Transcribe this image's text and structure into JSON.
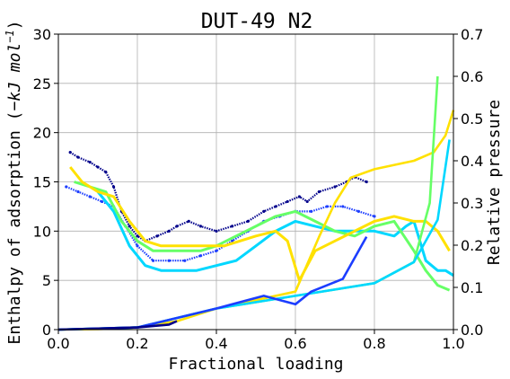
{
  "chart_data": {
    "type": "line",
    "title": "DUT-49 N2",
    "xlabel": "Fractional loading",
    "ylabel_left": "Enthalpy of adsorption (−kJ mol⁻¹)",
    "ylabel_left_parts": {
      "pre": "Enthalpy of adsorption (",
      "post": ")",
      "unit_main": "−kJ mol",
      "unit_sup": "−1"
    },
    "ylabel_right": "Relative pressure",
    "xlim": [
      0.0,
      1.0
    ],
    "ylim_left": [
      0,
      30
    ],
    "ylim_right": [
      0.0,
      0.7
    ],
    "x_ticks": [
      "0.0",
      "0.2",
      "0.4",
      "0.6",
      "0.8",
      "1.0"
    ],
    "y_left_ticks": [
      "0",
      "5",
      "10",
      "15",
      "20",
      "25",
      "30"
    ],
    "y_right_ticks": [
      "0.0",
      "0.1",
      "0.2",
      "0.3",
      "0.4",
      "0.5",
      "0.6",
      "0.7"
    ],
    "grid": true,
    "enthalpy_series": [
      {
        "color": "#00008b",
        "style": "dots",
        "x": [
          0.03,
          0.05,
          0.08,
          0.1,
          0.12,
          0.14,
          0.16,
          0.18,
          0.2,
          0.22,
          0.25,
          0.28,
          0.3,
          0.33,
          0.36,
          0.4,
          0.44,
          0.48,
          0.52,
          0.55,
          0.58,
          0.61,
          0.63,
          0.66,
          0.7,
          0.73,
          0.75,
          0.78
        ],
        "y": [
          18.0,
          17.5,
          17.0,
          16.5,
          16.0,
          14.5,
          12.0,
          10.5,
          9.5,
          9.0,
          9.5,
          10.0,
          10.5,
          11.0,
          10.5,
          10.0,
          10.5,
          11.0,
          12.0,
          12.5,
          13.0,
          13.5,
          13.0,
          14.0,
          14.5,
          15.0,
          15.5,
          15.0
        ]
      },
      {
        "color": "#1c3dff",
        "style": "dots",
        "x": [
          0.02,
          0.05,
          0.08,
          0.11,
          0.14,
          0.17,
          0.2,
          0.24,
          0.28,
          0.32,
          0.36,
          0.4,
          0.44,
          0.48,
          0.52,
          0.56,
          0.6,
          0.64,
          0.68,
          0.72,
          0.76,
          0.8
        ],
        "y": [
          14.5,
          14.0,
          13.5,
          13.0,
          12.5,
          10.5,
          8.5,
          7.0,
          7.0,
          7.0,
          7.5,
          8.0,
          9.0,
          10.0,
          11.0,
          11.5,
          12.0,
          12.0,
          12.5,
          12.5,
          12.0,
          11.5
        ]
      },
      {
        "color": "#00d7ff",
        "style": "thick",
        "x": [
          0.1,
          0.14,
          0.18,
          0.22,
          0.26,
          0.3,
          0.35,
          0.4,
          0.45,
          0.5,
          0.55,
          0.6,
          0.65,
          0.7,
          0.75,
          0.8,
          0.85,
          0.88,
          0.9,
          0.93,
          0.96,
          0.98,
          1.0
        ],
        "y": [
          14.0,
          12.0,
          8.5,
          6.5,
          6.0,
          6.0,
          6.0,
          6.5,
          7.0,
          8.5,
          10.0,
          11.0,
          10.5,
          10.0,
          10.0,
          10.0,
          9.5,
          10.5,
          11.0,
          7.0,
          6.0,
          6.0,
          5.5
        ]
      },
      {
        "color": "#66ff66",
        "style": "thick",
        "x": [
          0.04,
          0.08,
          0.12,
          0.16,
          0.2,
          0.24,
          0.28,
          0.32,
          0.36,
          0.4,
          0.45,
          0.5,
          0.55,
          0.6,
          0.65,
          0.7,
          0.75,
          0.8,
          0.85,
          0.9,
          0.93,
          0.96,
          0.99
        ],
        "y": [
          15.0,
          14.5,
          14.0,
          11.0,
          9.0,
          8.0,
          8.0,
          8.0,
          8.0,
          8.5,
          9.5,
          10.5,
          11.5,
          12.0,
          11.0,
          10.0,
          9.5,
          10.5,
          11.0,
          8.0,
          6.0,
          4.5,
          4.0
        ]
      },
      {
        "color": "#ffe100",
        "style": "thick",
        "x": [
          0.03,
          0.06,
          0.1,
          0.14,
          0.18,
          0.22,
          0.26,
          0.3,
          0.34,
          0.38,
          0.42,
          0.46,
          0.5,
          0.55,
          0.58,
          0.61,
          0.65,
          0.7,
          0.75,
          0.8,
          0.85,
          0.9,
          0.93,
          0.96,
          0.99
        ],
        "y": [
          16.5,
          15.0,
          14.0,
          13.5,
          11.0,
          9.0,
          8.5,
          8.5,
          8.5,
          8.5,
          8.5,
          9.0,
          9.5,
          10.0,
          9.0,
          5.0,
          8.0,
          9.0,
          10.0,
          11.0,
          11.5,
          11.0,
          11.0,
          10.0,
          8.0
        ]
      }
    ],
    "pressure_series": [
      {
        "color": "#ffe100",
        "x": [
          0.0,
          0.1,
          0.2,
          0.3,
          0.4,
          0.5,
          0.6,
          0.66,
          0.7,
          0.74,
          0.8,
          0.9,
          0.95,
          0.98,
          1.0
        ],
        "y": [
          0.0,
          0.001,
          0.005,
          0.02,
          0.05,
          0.07,
          0.09,
          0.22,
          0.3,
          0.36,
          0.38,
          0.4,
          0.42,
          0.46,
          0.52
        ]
      },
      {
        "color": "#66ff66",
        "x": [
          0.0,
          0.2,
          0.4,
          0.6,
          0.8,
          0.9,
          0.94,
          0.96
        ],
        "y": [
          0.0,
          0.005,
          0.05,
          0.08,
          0.11,
          0.16,
          0.3,
          0.6
        ]
      },
      {
        "color": "#00d7ff",
        "x": [
          0.0,
          0.2,
          0.4,
          0.6,
          0.8,
          0.9,
          0.96,
          0.99
        ],
        "y": [
          0.0,
          0.005,
          0.05,
          0.08,
          0.11,
          0.16,
          0.26,
          0.45
        ]
      },
      {
        "color": "#1c3dff",
        "x": [
          0.0,
          0.2,
          0.4,
          0.52,
          0.6,
          0.64,
          0.72,
          0.78
        ],
        "y": [
          0.0,
          0.005,
          0.05,
          0.08,
          0.06,
          0.09,
          0.12,
          0.22
        ]
      },
      {
        "color": "#00008b",
        "x": [
          0.0,
          0.2,
          0.28,
          0.3
        ],
        "y": [
          0.0,
          0.005,
          0.012,
          0.02
        ]
      }
    ]
  }
}
